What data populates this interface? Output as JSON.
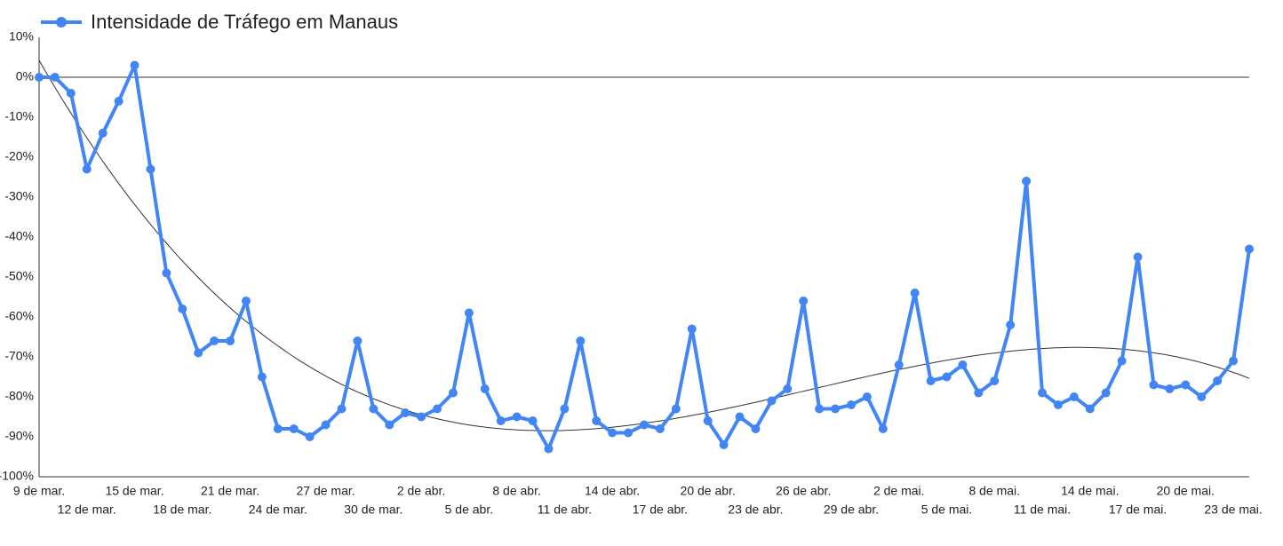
{
  "chart_data": {
    "type": "line",
    "title": "Intensidade de Tráfego em Manaus",
    "categories": [
      "9 de mar.",
      null,
      null,
      "12 de mar.",
      null,
      null,
      "15 de mar.",
      null,
      null,
      "18 de mar.",
      null,
      null,
      "21 de mar.",
      null,
      null,
      "24 de mar.",
      null,
      null,
      "27 de mar.",
      null,
      null,
      "30 de mar.",
      null,
      null,
      "2 de abr.",
      null,
      null,
      "5 de abr.",
      null,
      null,
      "8 de abr.",
      null,
      null,
      "11 de abr.",
      null,
      null,
      "14 de abr.",
      null,
      null,
      "17 de abr.",
      null,
      null,
      "20 de abr.",
      null,
      null,
      "23 de abr.",
      null,
      null,
      "26 de abr.",
      null,
      null,
      "29 de abr.",
      null,
      null,
      "2 de mai.",
      null,
      null,
      "5 de mai.",
      null,
      null,
      "8 de mai.",
      null,
      null,
      "11 de mai.",
      null,
      null,
      "14 de mai.",
      null,
      null,
      "17 de mai.",
      null,
      null,
      "20 de mai.",
      null,
      null,
      "23 de mai.",
      null
    ],
    "series": [
      {
        "name": "Intensidade de Tráfego em Manaus",
        "color": "#4285f4",
        "values": [
          0,
          0,
          -4,
          -23,
          -14,
          -6,
          3,
          -23,
          -49,
          -58,
          -69,
          -66,
          -66,
          -56,
          -75,
          -88,
          -88,
          -90,
          -87,
          -83,
          -66,
          -83,
          -87,
          -84,
          -85,
          -83,
          -79,
          -59,
          -78,
          -86,
          -85,
          -86,
          -93,
          -83,
          -66,
          -86,
          -89,
          -89,
          -87,
          -88,
          -83,
          -63,
          -86,
          -92,
          -85,
          -88,
          -81,
          -78,
          -56,
          -83,
          -83,
          -82,
          -80,
          -88,
          -72,
          -54,
          -76,
          -75,
          -72,
          -79,
          -76,
          -62,
          -26,
          -79,
          -82,
          -80,
          -83,
          -79,
          -71,
          -45,
          -77,
          -78,
          -77,
          -80,
          -76,
          -71,
          -43
        ]
      }
    ],
    "ylim": [
      -100,
      10
    ],
    "yticks": [
      {
        "value": -100,
        "label": "-100%"
      },
      {
        "value": -90,
        "label": "-90%"
      },
      {
        "value": -80,
        "label": "-80%"
      },
      {
        "value": -70,
        "label": "-70%"
      },
      {
        "value": -60,
        "label": "-60%"
      },
      {
        "value": -50,
        "label": "-50%"
      },
      {
        "value": -40,
        "label": "-40%"
      },
      {
        "value": -30,
        "label": "-30%"
      },
      {
        "value": -20,
        "label": "-20%"
      },
      {
        "value": -10,
        "label": "-10%"
      },
      {
        "value": 0,
        "label": "0%"
      },
      {
        "value": 10,
        "label": "10%"
      }
    ],
    "trendline": true,
    "legend": "top-left"
  }
}
